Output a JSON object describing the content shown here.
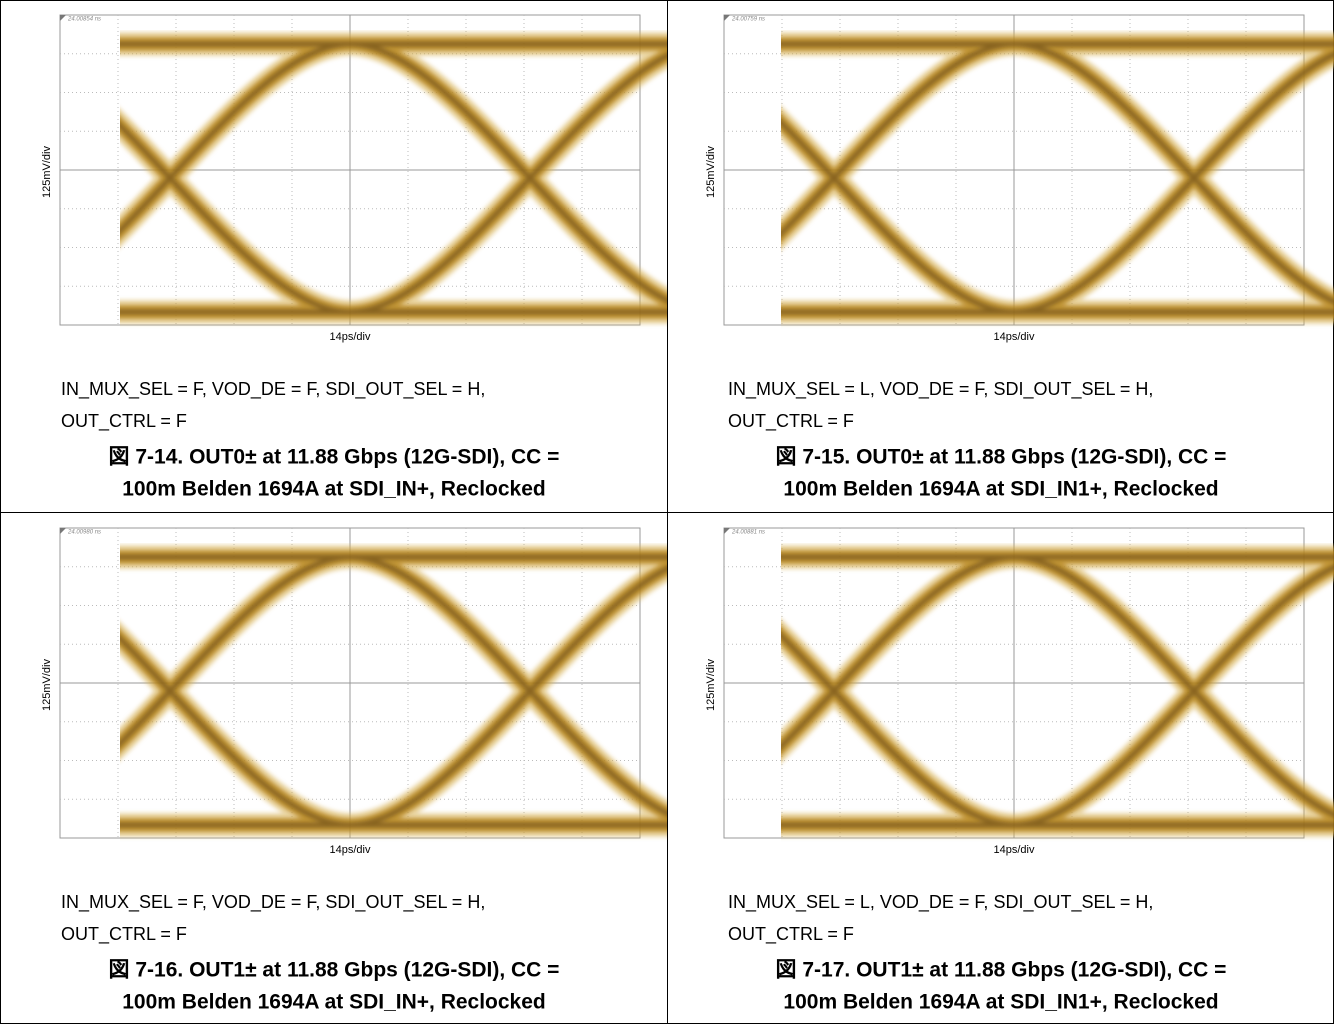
{
  "panels": [
    {
      "timestamp": "24.00854 ns",
      "y_axis_label": "125mV/div",
      "x_axis_label": "14ps/div",
      "conditions": [
        "IN_MUX_SEL = F, VOD_DE = F, SDI_OUT_SEL = H,",
        "OUT_CTRL = F"
      ],
      "caption": [
        "図 7-14. OUT0± at 11.88 Gbps (12G-SDI), CC =",
        "100m Belden 1694A at SDI_IN+, Reclocked"
      ]
    },
    {
      "timestamp": "24.00759 ns",
      "y_axis_label": "125mV/div",
      "x_axis_label": "14ps/div",
      "conditions": [
        "IN_MUX_SEL = L, VOD_DE = F, SDI_OUT_SEL = H,",
        "OUT_CTRL = F"
      ],
      "caption": [
        "図 7-15. OUT0± at 11.88 Gbps (12G-SDI), CC =",
        "100m Belden 1694A at SDI_IN1+, Reclocked"
      ]
    },
    {
      "timestamp": "24.00980 ns",
      "y_axis_label": "125mV/div",
      "x_axis_label": "14ps/div",
      "conditions": [
        "IN_MUX_SEL = F, VOD_DE = F, SDI_OUT_SEL = H,",
        "OUT_CTRL = F"
      ],
      "caption": [
        "図 7-16. OUT1± at 11.88 Gbps (12G-SDI), CC =",
        "100m Belden 1694A at SDI_IN+, Reclocked"
      ]
    },
    {
      "timestamp": "24.00881 ns",
      "y_axis_label": "125mV/div",
      "x_axis_label": "14ps/div",
      "conditions": [
        "IN_MUX_SEL = L, VOD_DE = F, SDI_OUT_SEL = H,",
        "OUT_CTRL = F"
      ],
      "caption": [
        "図 7-17. OUT1± at 11.88 Gbps (12G-SDI), CC =",
        "100m Belden 1694A at SDI_IN1+, Reclocked"
      ]
    }
  ]
}
